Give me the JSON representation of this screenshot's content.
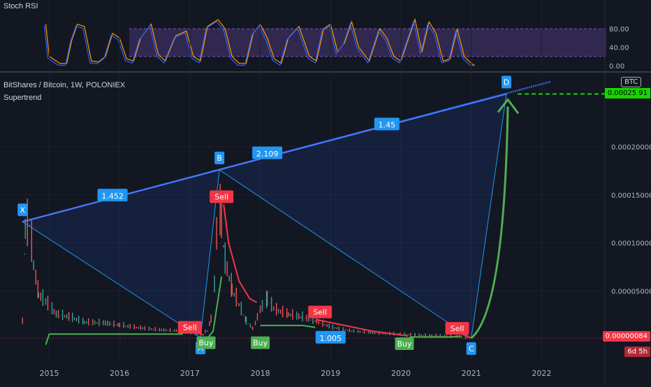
{
  "header": {
    "symbol": "BitShares / Bitcoin, 1W, POLONIEX",
    "indicator": "Supertrend",
    "stoch_title": "Stoch RSI",
    "btc_badge": "BTC"
  },
  "price_tag": "0.00000084",
  "countdown": "6d 5h",
  "d_price_tag": "0.00025 91",
  "colors": {
    "background": "#131722",
    "up": "#26a69a",
    "down": "#ef5350",
    "pattern_blue": "#2962ff",
    "label_blue": "#2196f3",
    "supertrend_up": "#4caf50",
    "supertrend_down": "#f23645",
    "stoch_band": "#7e57c2",
    "forecast_arrow": "#4caf50"
  },
  "chart_data": [
    {
      "type": "line",
      "title": "Stoch RSI",
      "ylim": [
        0,
        100
      ],
      "yticks": [
        "80.00",
        "40.00",
        "0.00"
      ],
      "band": [
        20,
        80
      ],
      "series": [
        {
          "values": [
            [
              2014.95,
              90
            ],
            [
              2015.0,
              20
            ],
            [
              2015.15,
              5
            ],
            [
              2015.25,
              5
            ],
            [
              2015.32,
              55
            ],
            [
              2015.4,
              90
            ],
            [
              2015.5,
              85
            ],
            [
              2015.6,
              10
            ],
            [
              2015.7,
              8
            ],
            [
              2015.8,
              20
            ],
            [
              2015.9,
              70
            ],
            [
              2016.0,
              60
            ],
            [
              2016.1,
              15
            ],
            [
              2016.2,
              10
            ],
            [
              2016.3,
              60
            ],
            [
              2016.45,
              90
            ],
            [
              2016.55,
              25
            ],
            [
              2016.65,
              10
            ],
            [
              2016.8,
              65
            ],
            [
              2016.95,
              75
            ],
            [
              2017.05,
              20
            ],
            [
              2017.15,
              10
            ],
            [
              2017.25,
              85
            ],
            [
              2017.4,
              100
            ],
            [
              2017.5,
              80
            ],
            [
              2017.6,
              20
            ],
            [
              2017.7,
              5
            ],
            [
              2017.8,
              5
            ],
            [
              2017.9,
              70
            ],
            [
              2018.0,
              90
            ],
            [
              2018.1,
              60
            ],
            [
              2018.2,
              15
            ],
            [
              2018.3,
              5
            ],
            [
              2018.4,
              60
            ],
            [
              2018.55,
              85
            ],
            [
              2018.7,
              20
            ],
            [
              2018.8,
              10
            ],
            [
              2018.9,
              80
            ],
            [
              2019.0,
              90
            ],
            [
              2019.1,
              30
            ],
            [
              2019.2,
              50
            ],
            [
              2019.3,
              95
            ],
            [
              2019.4,
              40
            ],
            [
              2019.55,
              10
            ],
            [
              2019.7,
              80
            ],
            [
              2019.8,
              60
            ],
            [
              2019.9,
              20
            ],
            [
              2020.0,
              10
            ],
            [
              2020.1,
              55
            ],
            [
              2020.2,
              100
            ],
            [
              2020.3,
              30
            ],
            [
              2020.4,
              95
            ],
            [
              2020.5,
              70
            ],
            [
              2020.6,
              10
            ],
            [
              2020.7,
              15
            ],
            [
              2020.8,
              80
            ],
            [
              2020.9,
              20
            ],
            [
              2021.0,
              5
            ],
            [
              2021.05,
              0
            ]
          ]
        }
      ]
    },
    {
      "type": "line",
      "title": "BitShares / Bitcoin, 1W, POLONIEX",
      "ylim": [
        -6e-06,
        0.00028
      ],
      "yticks": [
        "0.00020000",
        "0.00015000",
        "0.00010000",
        "0.00005000"
      ],
      "xlabels": [
        "2015",
        "2016",
        "2017",
        "2018",
        "2019",
        "2020",
        "2021",
        "2022"
      ],
      "xlim": [
        2014.3,
        2022.9
      ],
      "price": [
        [
          2014.62,
          1.8e-05
        ],
        [
          2014.66,
          0.000112
        ],
        [
          2014.72,
          0.000118
        ],
        [
          2014.78,
          7.5e-05
        ],
        [
          2014.85,
          4.5e-05
        ],
        [
          2014.95,
          3.8e-05
        ],
        [
          2015.1,
          2.5e-05
        ],
        [
          2015.3,
          2.2e-05
        ],
        [
          2015.5,
          1.7e-05
        ],
        [
          2015.8,
          1.6e-05
        ],
        [
          2016.0,
          1.4e-05
        ],
        [
          2016.3,
          1.1e-05
        ],
        [
          2016.6,
          9e-06
        ],
        [
          2016.9,
          8e-06
        ],
        [
          2017.1,
          5e-06
        ],
        [
          2017.25,
          8e-06
        ],
        [
          2017.3,
          2e-05
        ],
        [
          2017.35,
          5.5e-05
        ],
        [
          2017.4,
          0.00014
        ],
        [
          2017.45,
          0.00012
        ],
        [
          2017.5,
          8e-05
        ],
        [
          2017.6,
          5e-05
        ],
        [
          2017.7,
          3.5e-05
        ],
        [
          2017.8,
          1.8e-05
        ],
        [
          2017.9,
          1e-05
        ],
        [
          2018.0,
          3e-05
        ],
        [
          2018.1,
          4e-05
        ],
        [
          2018.2,
          3e-05
        ],
        [
          2018.4,
          2.5e-05
        ],
        [
          2018.6,
          2.2e-05
        ],
        [
          2018.8,
          1.8e-05
        ],
        [
          2019.0,
          1.2e-05
        ],
        [
          2019.3,
          8e-06
        ],
        [
          2019.6,
          6e-06
        ],
        [
          2019.9,
          5e-06
        ],
        [
          2020.2,
          4e-06
        ],
        [
          2020.5,
          3e-06
        ],
        [
          2020.8,
          2e-06
        ],
        [
          2021.0,
          8e-07
        ]
      ],
      "supertrend": [
        {
          "name": "",
          "color": "up",
          "points": [
            [
              2014.95,
              -6e-06
            ],
            [
              2015.0,
              5e-06
            ],
            [
              2016.0,
              5e-06
            ],
            [
              2016.9,
              5e-06
            ]
          ]
        },
        {
          "name": "",
          "color": "down",
          "points": [
            [
              2016.92,
              1e-05
            ],
            [
              2017.2,
              4e-06
            ]
          ]
        },
        {
          "name": "",
          "color": "up",
          "points": [
            [
              2017.22,
              -2e-06
            ],
            [
              2017.33,
              8e-06
            ],
            [
              2017.45,
              6.5e-05
            ]
          ]
        },
        {
          "name": "",
          "color": "down",
          "points": [
            [
              2017.48,
              0.00014
            ],
            [
              2017.55,
              0.0001
            ],
            [
              2017.7,
              6e-05
            ],
            [
              2017.85,
              4.2e-05
            ],
            [
              2017.95,
              3.8e-05
            ]
          ]
        },
        {
          "name": "",
          "color": "up",
          "points": [
            [
              2018.0,
              1.4e-05
            ],
            [
              2018.6,
              1.4e-05
            ],
            [
              2018.78,
              1.2e-05
            ]
          ]
        },
        {
          "name": "",
          "color": "down",
          "points": [
            [
              2018.8,
              2e-05
            ],
            [
              2019.2,
              1.4e-05
            ],
            [
              2019.6,
              8e-06
            ],
            [
              2020.0,
              4e-06
            ],
            [
              2020.1,
              3e-06
            ]
          ]
        },
        {
          "name": "",
          "color": "up",
          "points": [
            [
              2020.12,
              2e-06
            ],
            [
              2020.7,
              2e-06
            ],
            [
              2020.85,
              3e-06
            ]
          ]
        },
        {
          "name": "",
          "color": "down",
          "points": [
            [
              2020.87,
              5e-06
            ],
            [
              2021.0,
              1e-06
            ]
          ]
        }
      ],
      "signals": [
        {
          "label": "Sell",
          "x": 2017.0,
          "y": 1.2e-05,
          "kind": "sell"
        },
        {
          "label": "Buy",
          "x": 2017.23,
          "y": -4e-06,
          "kind": "buy"
        },
        {
          "label": "Sell",
          "x": 2017.45,
          "y": 0.000148,
          "kind": "sell"
        },
        {
          "label": "Buy",
          "x": 2018.0,
          "y": -4e-06,
          "kind": "buy"
        },
        {
          "label": "Sell",
          "x": 2018.85,
          "y": 2.8e-05,
          "kind": "sell"
        },
        {
          "label": "Buy",
          "x": 2020.05,
          "y": -5e-06,
          "kind": "buy"
        },
        {
          "label": "Sell",
          "x": 2020.8,
          "y": 1.1e-05,
          "kind": "sell"
        }
      ],
      "pattern": {
        "points": [
          {
            "label": "X",
            "x": 2014.62,
            "y": 0.000122
          },
          {
            "label": "A",
            "x": 2017.15,
            "y": 1.5e-06
          },
          {
            "label": "B",
            "x": 2017.42,
            "y": 0.000176
          },
          {
            "label": "C",
            "x": 2021.0,
            "y": 8e-07
          },
          {
            "label": "D",
            "x": 2021.5,
            "y": 0.000255
          }
        ],
        "ratios": [
          {
            "label": "1.452",
            "x": 2015.9,
            "y": 0.000149
          },
          {
            "label": "2.109",
            "x": 2018.1,
            "y": 0.000193
          },
          {
            "label": "1.45",
            "x": 2019.8,
            "y": 0.000223
          },
          {
            "label": "1.005",
            "x": 2019.0,
            "y": 1e-06
          }
        ]
      },
      "target_line": 0.000255
    }
  ]
}
